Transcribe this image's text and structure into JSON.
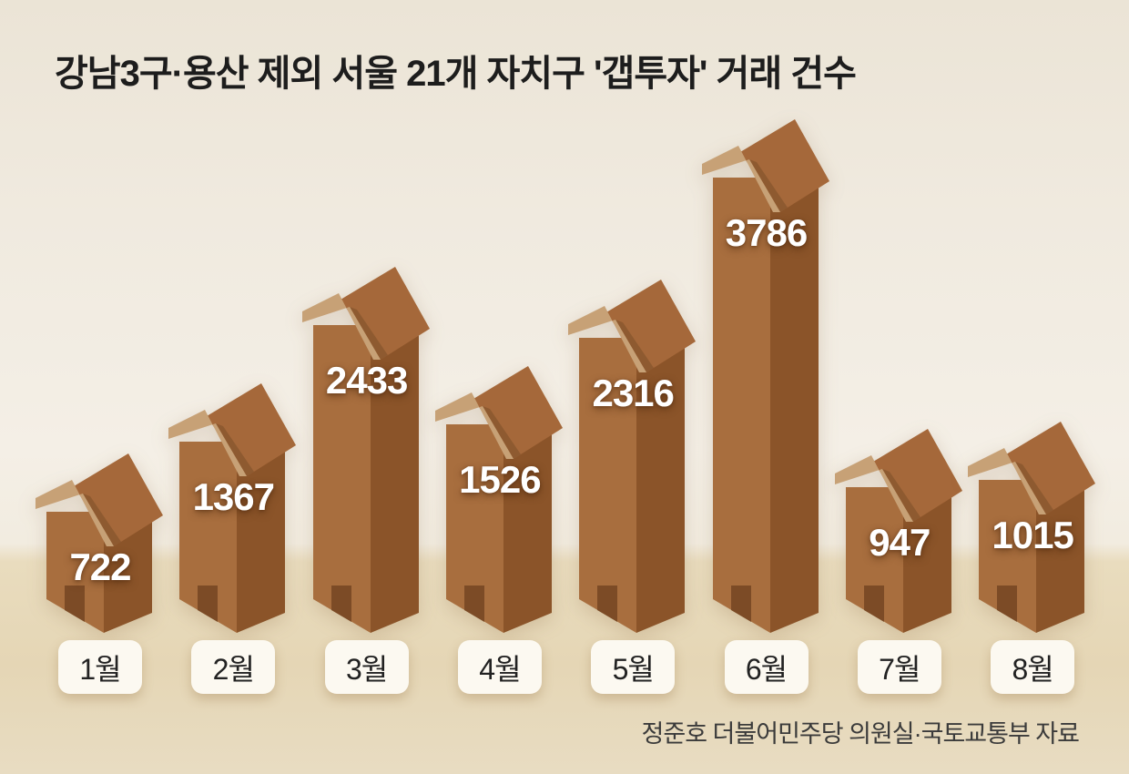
{
  "title": "강남3구·용산 제외 서울 21개 자치구 '갭투자' 거래 건수",
  "source": "정준호 더불어민주당 의원실·국토교통부 자료",
  "chart_data": {
    "type": "bar",
    "style": "pictogram-house-bars",
    "title": "강남3구·용산 제외 서울 21개 자치구 '갭투자' 거래 건수",
    "categories": [
      "1월",
      "2월",
      "3월",
      "4월",
      "5월",
      "6월",
      "7월",
      "8월"
    ],
    "values": [
      722,
      1367,
      2433,
      1526,
      2316,
      3786,
      947,
      1015
    ],
    "series_name": "갭투자 거래 건수",
    "xlabel": "",
    "ylabel": "",
    "ylim": [
      0,
      4000
    ],
    "grid": false,
    "legend": "none",
    "value_labels": "on-bar",
    "source": "정준호 더불어민주당 의원실·국토교통부 자료"
  },
  "colors": {
    "house_front": "#a86e3e",
    "house_side": "#8b5429",
    "roof": "#a5683a",
    "roof_shadow": "#8e5a30",
    "roof_trim": "#c7a176",
    "door": "#7c4b26",
    "value_text": "#ffffff",
    "label_bg": "#fcf9f1",
    "label_text": "#222222",
    "title_text": "#1d1d1d",
    "source_text": "#3b3b3b",
    "sky": "#f2ece1",
    "ground": "#e8dabd"
  }
}
